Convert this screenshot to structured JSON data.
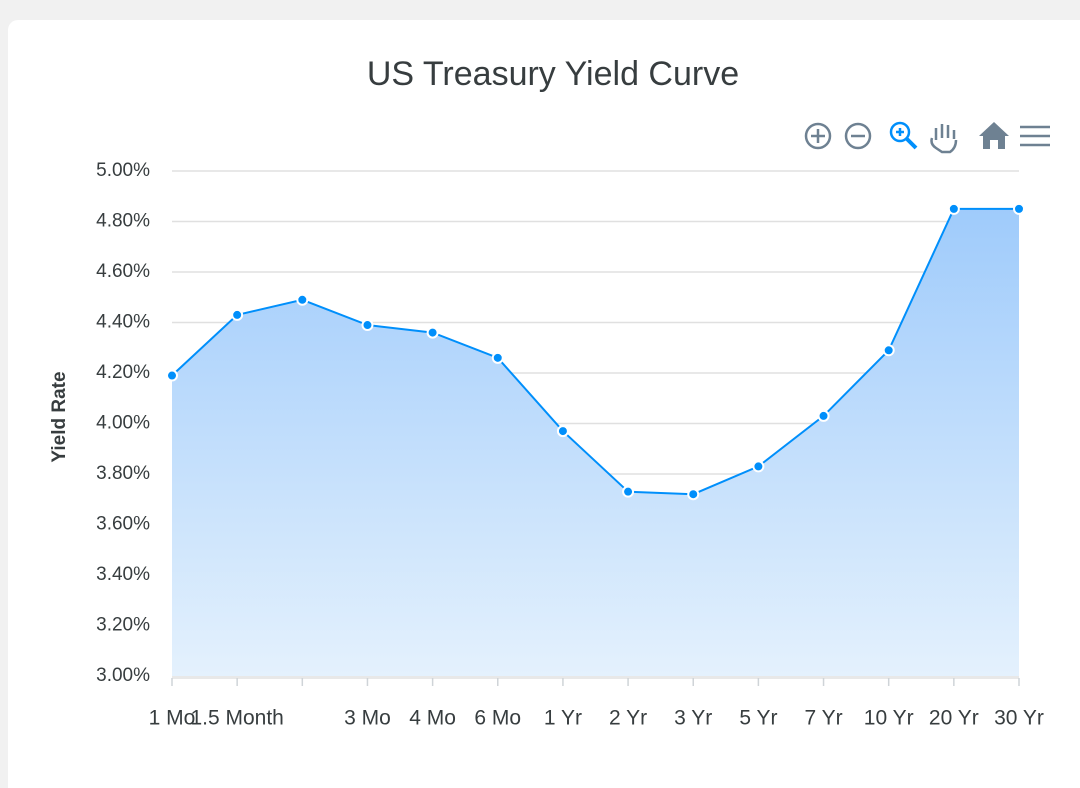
{
  "chart_data": {
    "type": "area",
    "title": "US Treasury Yield Curve",
    "y_label": "Yield Rate",
    "categories": [
      "1 Mo",
      "1.5 Month",
      null,
      "3 Mo",
      "4 Mo",
      "6 Mo",
      "1 Yr",
      "2 Yr",
      "3 Yr",
      "5 Yr",
      "7 Yr",
      "10 Yr",
      "20 Yr",
      "30 Yr"
    ],
    "values": [
      4.19,
      4.43,
      4.49,
      4.39,
      4.36,
      4.26,
      3.97,
      3.73,
      3.72,
      3.83,
      4.03,
      4.29,
      4.85,
      4.85
    ],
    "color": "#008ffb",
    "ylim": [
      3,
      5
    ],
    "yticks": [
      {
        "value": 3,
        "label": "3.00%"
      },
      {
        "value": 3.2,
        "label": "3.20%"
      },
      {
        "value": 3.4,
        "label": "3.40%"
      },
      {
        "value": 3.6,
        "label": "3.60%"
      },
      {
        "value": 3.8,
        "label": "3.80%"
      },
      {
        "value": 4,
        "label": "4.00%"
      },
      {
        "value": 4.2,
        "label": "4.20%"
      },
      {
        "value": 4.4,
        "label": "4.40%"
      },
      {
        "value": 4.6,
        "label": "4.60%"
      },
      {
        "value": 4.8,
        "label": "4.80%"
      },
      {
        "value": 5,
        "label": "5.00%"
      }
    ],
    "grid": true
  }
}
